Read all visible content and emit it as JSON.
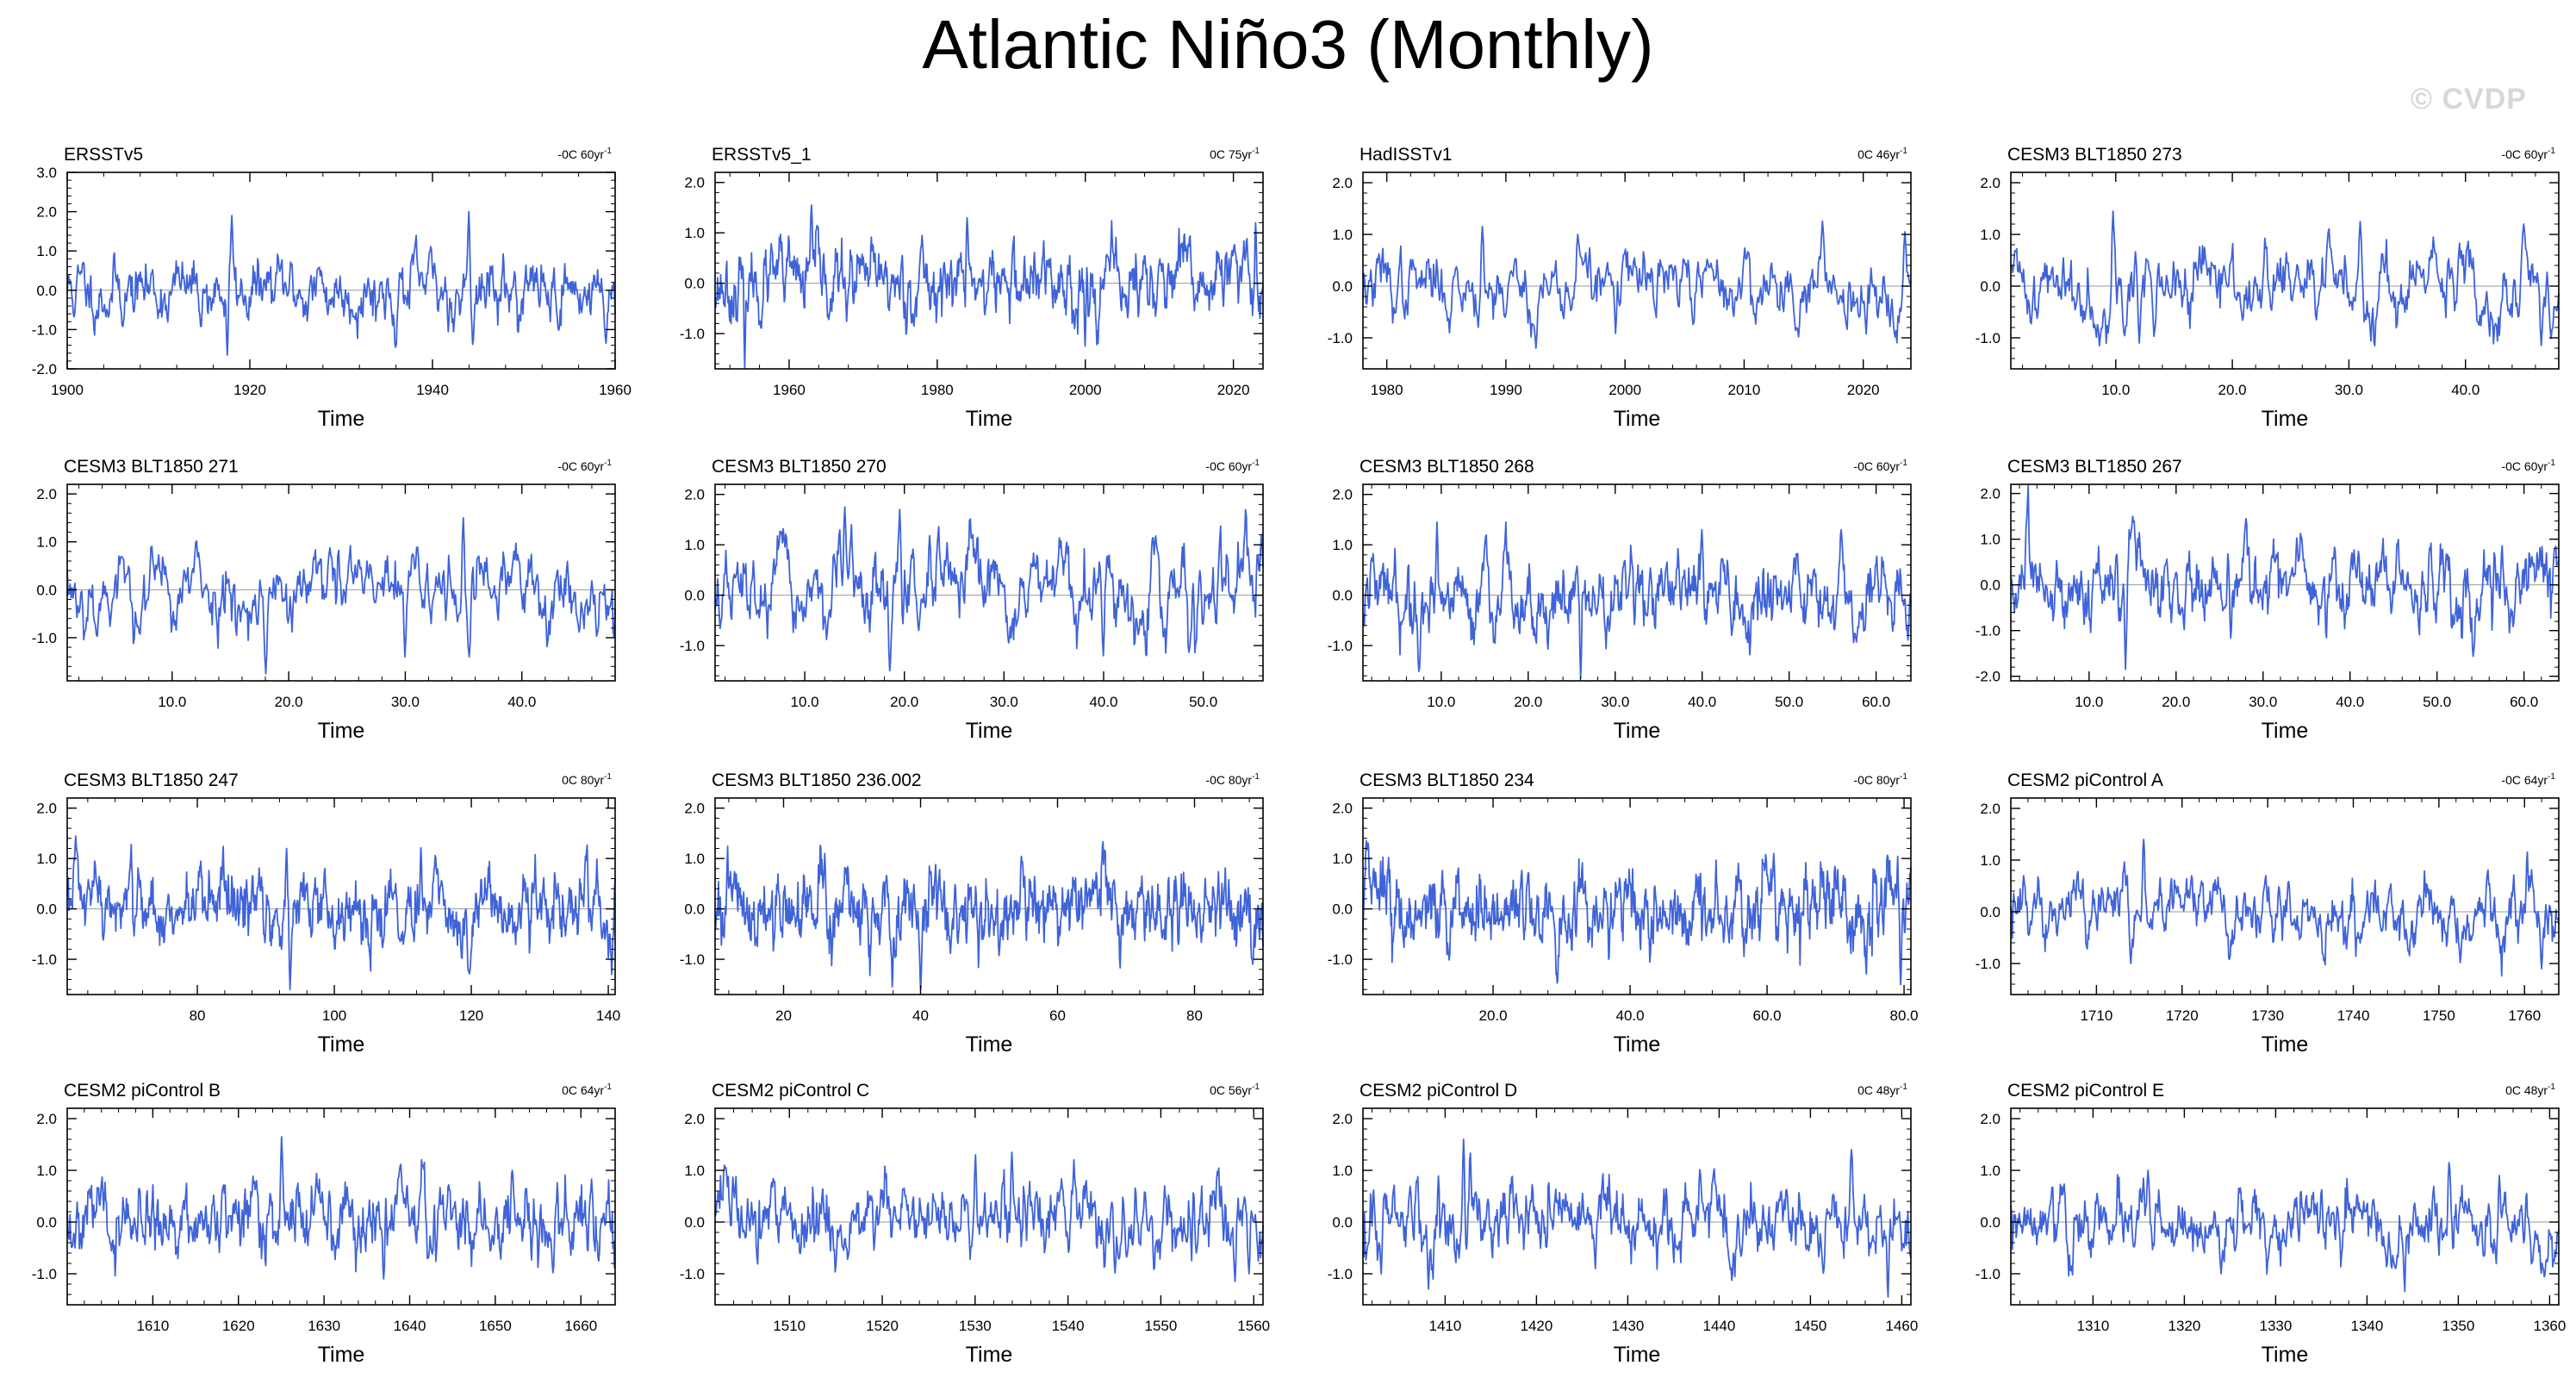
{
  "title": "Atlantic Niño3 (Monthly)",
  "watermark": "© CVDP",
  "line_color": "#3f63d8",
  "chart_data": [
    {
      "type": "line",
      "title": "ERSSTv5",
      "trend": "-0C 60yr",
      "trend_sup": "-1",
      "xlabel": "Time",
      "xlim": [
        1900,
        1960
      ],
      "xticks": [
        1900,
        1920,
        1940,
        1960
      ],
      "xtick_labels": [
        "1900",
        "1920",
        "1940",
        "1960"
      ],
      "ylim": [
        -2,
        3
      ],
      "yticks": [
        -2,
        -1,
        0,
        1,
        2,
        3
      ],
      "ytick_labels": [
        "-2.0",
        "-1.0",
        "0.0",
        "1.0",
        "2.0",
        "3.0"
      ],
      "amp": 0.45,
      "seed": 11,
      "peaks": [
        [
          1918.0,
          1.9
        ],
        [
          1944.0,
          2.0
        ],
        [
          1936.0,
          -1.45
        ],
        [
          1917.5,
          -1.65
        ],
        [
          1959.0,
          -1.35
        ]
      ]
    },
    {
      "type": "line",
      "title": "ERSSTv5_1",
      "trend": "0C 75yr",
      "trend_sup": "-1",
      "xlabel": "Time",
      "xlim": [
        1950,
        2024
      ],
      "xticks": [
        1960,
        1980,
        2000,
        2020
      ],
      "xtick_labels": [
        "1960",
        "1980",
        "2000",
        "2020"
      ],
      "ylim": [
        -1.7,
        2.2
      ],
      "yticks": [
        -1,
        0,
        1,
        2
      ],
      "ytick_labels": [
        "-1.0",
        "0.0",
        "1.0",
        "2.0"
      ],
      "amp": 0.4,
      "seed": 23,
      "peaks": [
        [
          1963.0,
          1.55
        ],
        [
          1954.0,
          -1.7
        ],
        [
          1984.0,
          1.3
        ],
        [
          2000.0,
          -1.25
        ],
        [
          2023.0,
          1.2
        ]
      ]
    },
    {
      "type": "line",
      "title": "HadISSTv1",
      "trend": "0C 46yr",
      "trend_sup": "-1",
      "xlabel": "Time",
      "xlim": [
        1978,
        2024
      ],
      "xticks": [
        1980,
        1990,
        2000,
        2010,
        2020
      ],
      "xtick_labels": [
        "1980",
        "1990",
        "2000",
        "2010",
        "2020"
      ],
      "ylim": [
        -1.6,
        2.2
      ],
      "yticks": [
        -1,
        0,
        1,
        2
      ],
      "ytick_labels": [
        "-1.0",
        "0.0",
        "1.0",
        "2.0"
      ],
      "amp": 0.38,
      "seed": 37,
      "peaks": [
        [
          1988.0,
          1.15
        ],
        [
          1996.0,
          1.0
        ],
        [
          1992.5,
          -1.2
        ],
        [
          2023.5,
          1.05
        ]
      ]
    },
    {
      "type": "line",
      "title": "CESM3 BLT1850 273",
      "trend": "-0C 60yr",
      "trend_sup": "-1",
      "xlabel": "Time",
      "xlim": [
        1,
        48
      ],
      "xticks": [
        10,
        20,
        30,
        40
      ],
      "xtick_labels": [
        "10.0",
        "20.0",
        "30.0",
        "40.0"
      ],
      "ylim": [
        -1.6,
        2.2
      ],
      "yticks": [
        -1,
        0,
        1,
        2
      ],
      "ytick_labels": [
        "-1.0",
        "0.0",
        "1.0",
        "2.0"
      ],
      "amp": 0.42,
      "seed": 41,
      "peaks": [
        [
          9.8,
          1.45
        ],
        [
          31.0,
          1.25
        ],
        [
          45.0,
          1.2
        ],
        [
          12.0,
          -1.1
        ],
        [
          46.5,
          -1.15
        ]
      ]
    },
    {
      "type": "line",
      "title": "CESM3 BLT1850 271",
      "trend": "-0C 60yr",
      "trend_sup": "-1",
      "xlabel": "Time",
      "xlim": [
        1,
        48
      ],
      "xticks": [
        10,
        20,
        30,
        40
      ],
      "xtick_labels": [
        "10.0",
        "20.0",
        "30.0",
        "40.0"
      ],
      "ylim": [
        -1.9,
        2.2
      ],
      "yticks": [
        -1,
        0,
        1,
        2
      ],
      "ytick_labels": [
        "-1.0",
        "0.0",
        "1.0",
        "2.0"
      ],
      "amp": 0.48,
      "seed": 53,
      "peaks": [
        [
          35.0,
          1.5
        ],
        [
          18.0,
          -1.75
        ],
        [
          30.0,
          -1.4
        ],
        [
          35.5,
          -1.4
        ]
      ]
    },
    {
      "type": "line",
      "title": "CESM3 BLT1850 270",
      "trend": "-0C 60yr",
      "trend_sup": "-1",
      "xlabel": "Time",
      "xlim": [
        1,
        56
      ],
      "xticks": [
        10,
        20,
        30,
        40,
        50
      ],
      "xtick_labels": [
        "10.0",
        "20.0",
        "30.0",
        "40.0",
        "50.0"
      ],
      "ylim": [
        -1.7,
        2.2
      ],
      "yticks": [
        -1,
        0,
        1,
        2
      ],
      "ytick_labels": [
        "-1.0",
        "0.0",
        "1.0",
        "2.0"
      ],
      "amp": 0.45,
      "seed": 67,
      "peaks": [
        [
          14.0,
          1.75
        ],
        [
          19.5,
          1.7
        ],
        [
          18.5,
          -1.5
        ],
        [
          55.8,
          1.2
        ],
        [
          40.0,
          -1.2
        ]
      ]
    },
    {
      "type": "line",
      "title": "CESM3 BLT1850 268",
      "trend": "-0C 60yr",
      "trend_sup": "-1",
      "xlabel": "Time",
      "xlim": [
        1,
        64
      ],
      "xticks": [
        10,
        20,
        30,
        40,
        50,
        60
      ],
      "xtick_labels": [
        "10.0",
        "20.0",
        "30.0",
        "40.0",
        "50.0",
        "60.0"
      ],
      "ylim": [
        -1.7,
        2.2
      ],
      "yticks": [
        -1,
        0,
        1,
        2
      ],
      "ytick_labels": [
        "-1.0",
        "0.0",
        "1.0",
        "2.0"
      ],
      "amp": 0.45,
      "seed": 79,
      "peaks": [
        [
          9.5,
          1.45
        ],
        [
          26.0,
          -1.65
        ],
        [
          40.0,
          1.3
        ],
        [
          56.0,
          1.3
        ]
      ]
    },
    {
      "type": "line",
      "title": "CESM3 BLT1850 267",
      "trend": "-0C 60yr",
      "trend_sup": "-1",
      "xlabel": "Time",
      "xlim": [
        1,
        64
      ],
      "xticks": [
        10,
        20,
        30,
        40,
        50,
        60
      ],
      "xtick_labels": [
        "10.0",
        "20.0",
        "30.0",
        "40.0",
        "50.0",
        "60.0"
      ],
      "ylim": [
        -2.1,
        2.2
      ],
      "yticks": [
        -2,
        -1,
        0,
        1,
        2
      ],
      "ytick_labels": [
        "-2.0",
        "-1.0",
        "0.0",
        "1.0",
        "2.0"
      ],
      "amp": 0.48,
      "seed": 83,
      "peaks": [
        [
          15.0,
          1.5
        ],
        [
          14.2,
          -1.85
        ],
        [
          28.0,
          1.45
        ],
        [
          63.5,
          0.8
        ]
      ]
    },
    {
      "type": "line",
      "title": "CESM3 BLT1850 247",
      "trend": "0C 80yr",
      "trend_sup": "-1",
      "xlabel": "Time",
      "xlim": [
        61,
        141
      ],
      "xticks": [
        80,
        100,
        120,
        140
      ],
      "xtick_labels": [
        "80",
        "100",
        "120",
        "140"
      ],
      "ylim": [
        -1.7,
        2.2
      ],
      "yticks": [
        -1,
        0,
        1,
        2
      ],
      "ytick_labels": [
        "-1.0",
        "0.0",
        "1.0",
        "2.0"
      ],
      "amp": 0.42,
      "seed": 97,
      "peaks": [
        [
          93.5,
          -1.6
        ],
        [
          62.0,
          1.0
        ],
        [
          140.5,
          -1.3
        ],
        [
          93.0,
          1.2
        ]
      ]
    },
    {
      "type": "line",
      "title": "CESM3 BLT1850 236.002",
      "trend": "-0C 80yr",
      "trend_sup": "-1",
      "xlabel": "Time",
      "xlim": [
        10,
        90
      ],
      "xticks": [
        20,
        40,
        60,
        80
      ],
      "xtick_labels": [
        "20",
        "40",
        "60",
        "80"
      ],
      "ylim": [
        -1.7,
        2.2
      ],
      "yticks": [
        -1,
        0,
        1,
        2
      ],
      "ytick_labels": [
        "-1.0",
        "0.0",
        "1.0",
        "2.0"
      ],
      "amp": 0.45,
      "seed": 101,
      "peaks": [
        [
          40.0,
          -1.6
        ],
        [
          88.5,
          -1.1
        ],
        [
          26.0,
          1.1
        ]
      ]
    },
    {
      "type": "line",
      "title": "CESM3 BLT1850 234",
      "trend": "-0C 80yr",
      "trend_sup": "-1",
      "xlabel": "Time",
      "xlim": [
        1,
        81
      ],
      "xticks": [
        20,
        40,
        60,
        80
      ],
      "xtick_labels": [
        "20.0",
        "40.0",
        "60.0",
        "80.0"
      ],
      "ylim": [
        -1.7,
        2.2
      ],
      "yticks": [
        -1,
        0,
        1,
        2
      ],
      "ytick_labels": [
        "-1.0",
        "0.0",
        "1.0",
        "2.0"
      ],
      "amp": 0.45,
      "seed": 113,
      "peaks": [
        [
          1.5,
          1.35
        ],
        [
          79.5,
          -1.5
        ],
        [
          61.0,
          1.1
        ]
      ]
    },
    {
      "type": "line",
      "title": "CESM2 piControl A",
      "trend": "-0C 64yr",
      "trend_sup": "-1",
      "xlabel": "Time",
      "xlim": [
        1700,
        1764
      ],
      "xticks": [
        1710,
        1720,
        1730,
        1740,
        1750,
        1760
      ],
      "xtick_labels": [
        "1710",
        "1720",
        "1730",
        "1740",
        "1750",
        "1760"
      ],
      "ylim": [
        -1.6,
        2.2
      ],
      "yticks": [
        -1,
        0,
        1,
        2
      ],
      "ytick_labels": [
        "-1.0",
        "0.0",
        "1.0",
        "2.0"
      ],
      "amp": 0.33,
      "seed": 127,
      "peaks": [
        [
          1715.5,
          1.4
        ],
        [
          1714.0,
          -1.0
        ],
        [
          1762.0,
          -1.1
        ],
        [
          1701.5,
          0.7
        ]
      ]
    },
    {
      "type": "line",
      "title": "CESM2 piControl B",
      "trend": "0C 64yr",
      "trend_sup": "-1",
      "xlabel": "Time",
      "xlim": [
        1600,
        1664
      ],
      "xticks": [
        1610,
        1620,
        1630,
        1640,
        1650,
        1660
      ],
      "xtick_labels": [
        "1610",
        "1620",
        "1630",
        "1640",
        "1650",
        "1660"
      ],
      "ylim": [
        -1.6,
        2.2
      ],
      "yticks": [
        -1,
        0,
        1,
        2
      ],
      "ytick_labels": [
        "-1.0",
        "0.0",
        "1.0",
        "2.0"
      ],
      "amp": 0.42,
      "seed": 131,
      "peaks": [
        [
          1625.0,
          1.65
        ],
        [
          1637.0,
          -1.1
        ],
        [
          1652.0,
          1.0
        ]
      ]
    },
    {
      "type": "line",
      "title": "CESM2 piControl C",
      "trend": "0C 56yr",
      "trend_sup": "-1",
      "xlabel": "Time",
      "xlim": [
        1502,
        1561
      ],
      "xticks": [
        1510,
        1520,
        1530,
        1540,
        1550,
        1560
      ],
      "xtick_labels": [
        "1510",
        "1520",
        "1530",
        "1540",
        "1550",
        "1560"
      ],
      "ylim": [
        -1.6,
        2.2
      ],
      "yticks": [
        -1,
        0,
        1,
        2
      ],
      "ytick_labels": [
        "-1.0",
        "0.0",
        "1.0",
        "2.0"
      ],
      "amp": 0.42,
      "seed": 149,
      "peaks": [
        [
          1503.0,
          1.1
        ],
        [
          1530.0,
          1.3
        ],
        [
          1534.0,
          1.35
        ],
        [
          1558.0,
          -1.15
        ],
        [
          1559.5,
          -1.0
        ]
      ]
    },
    {
      "type": "line",
      "title": "CESM2 piControl D",
      "trend": "0C 48yr",
      "trend_sup": "-1",
      "xlabel": "Time",
      "xlim": [
        1401,
        1461
      ],
      "xticks": [
        1410,
        1420,
        1430,
        1440,
        1450,
        1460
      ],
      "xtick_labels": [
        "1410",
        "1420",
        "1430",
        "1440",
        "1450",
        "1460"
      ],
      "ylim": [
        -1.6,
        2.2
      ],
      "yticks": [
        -1,
        0,
        1,
        2
      ],
      "ytick_labels": [
        "-1.0",
        "0.0",
        "1.0",
        "2.0"
      ],
      "amp": 0.4,
      "seed": 157,
      "peaks": [
        [
          1412.0,
          1.6
        ],
        [
          1454.5,
          1.4
        ],
        [
          1458.5,
          -1.45
        ],
        [
          1403.0,
          -1.0
        ]
      ]
    },
    {
      "type": "line",
      "title": "CESM2 piControl E",
      "trend": "0C 48yr",
      "trend_sup": "-1",
      "xlabel": "Time",
      "xlim": [
        1301,
        1361
      ],
      "xticks": [
        1310,
        1320,
        1330,
        1340,
        1350,
        1360
      ],
      "xtick_labels": [
        "1310",
        "1320",
        "1330",
        "1340",
        "1350",
        "1360"
      ],
      "ylim": [
        -1.6,
        2.2
      ],
      "yticks": [
        -1,
        0,
        1,
        2
      ],
      "ytick_labels": [
        "-1.0",
        "0.0",
        "1.0",
        "2.0"
      ],
      "amp": 0.37,
      "seed": 163,
      "peaks": [
        [
          1354.5,
          0.9
        ],
        [
          1316.0,
          1.0
        ],
        [
          1349.0,
          1.15
        ],
        [
          1324.0,
          -1.0
        ]
      ]
    }
  ]
}
